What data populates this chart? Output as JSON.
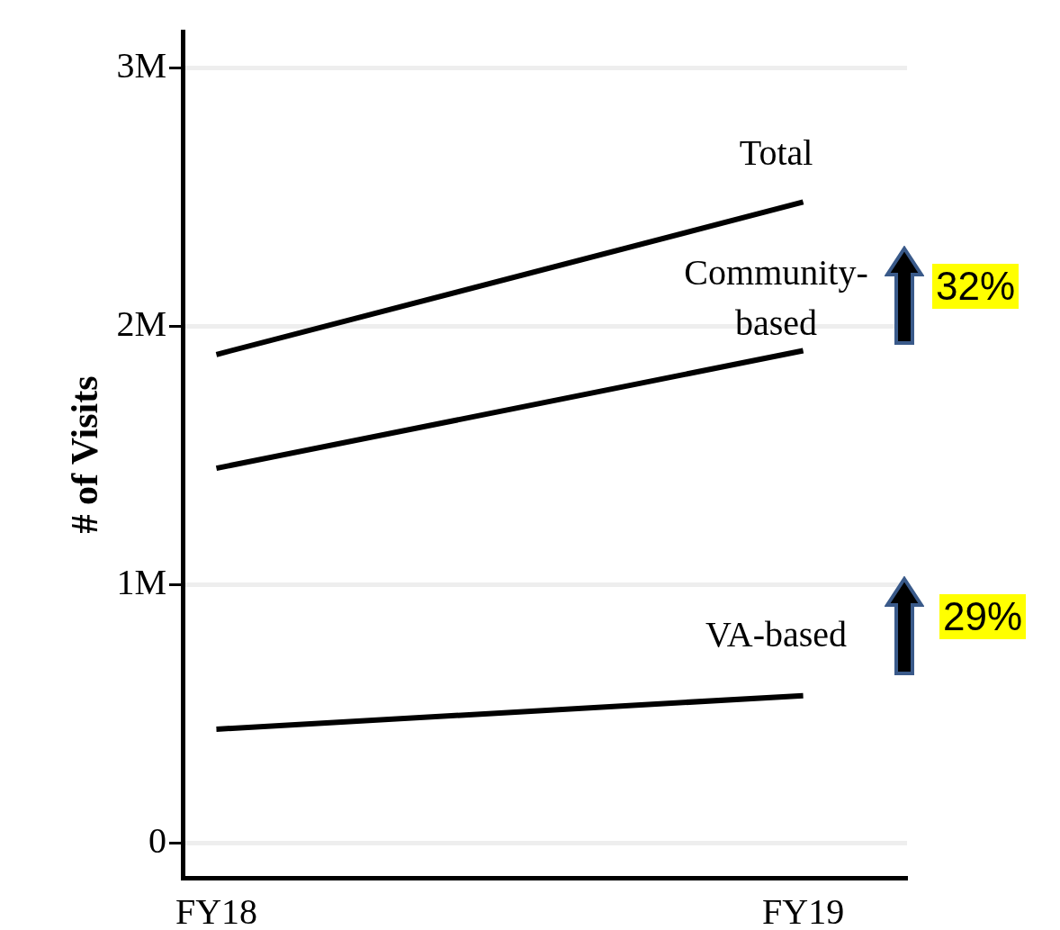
{
  "chart_data": {
    "type": "line",
    "ylabel": "# of Visits",
    "categories": [
      "FY18",
      "FY19"
    ],
    "series": [
      {
        "name": "Total",
        "color": "#000000",
        "values": [
          1890000,
          2480000
        ]
      },
      {
        "name": "Community-based",
        "color": "#000000",
        "values": [
          1450000,
          1905000
        ]
      },
      {
        "name": "VA-based",
        "color": "#000000",
        "values": [
          440000,
          570000
        ]
      }
    ],
    "ylim": [
      -135000,
      3140000
    ],
    "yticks": [
      0,
      {
        "value": 1000000,
        "label": "1M"
      },
      {
        "value": 2000000,
        "label": "2M"
      },
      {
        "value": 3000000,
        "label": "3M"
      }
    ],
    "grid": "y",
    "legend": false,
    "marker": "none",
    "line_style": "solid",
    "annotations": [
      "32%",
      "29%"
    ]
  }
}
